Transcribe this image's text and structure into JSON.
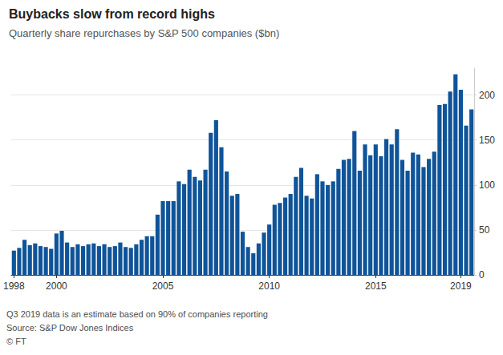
{
  "chart_data": {
    "type": "bar",
    "title": "Buybacks slow from record highs",
    "subtitle": "Quarterly share repurchases by S&P 500 companies ($bn)",
    "notes": [
      "Q3 2019 data is an estimate based on 90% of companies reporting",
      "Source: S&P Dow Jones Indices",
      "© FT"
    ],
    "categories": [
      "1998",
      null,
      null,
      null,
      null,
      null,
      null,
      null,
      "2000",
      null,
      null,
      null,
      null,
      null,
      null,
      null,
      null,
      null,
      null,
      null,
      null,
      null,
      null,
      null,
      null,
      null,
      null,
      null,
      "2005",
      null,
      null,
      null,
      null,
      null,
      null,
      null,
      null,
      null,
      null,
      null,
      null,
      null,
      null,
      null,
      null,
      null,
      null,
      null,
      "2010",
      null,
      null,
      null,
      null,
      null,
      null,
      null,
      null,
      null,
      null,
      null,
      null,
      null,
      null,
      null,
      null,
      null,
      null,
      null,
      "2015",
      null,
      null,
      null,
      null,
      null,
      null,
      null,
      null,
      null,
      null,
      null,
      null,
      null,
      null,
      null,
      "2019",
      null,
      null
    ],
    "values": [
      27,
      30,
      39,
      33,
      35,
      32,
      31,
      29,
      46,
      49,
      36,
      31,
      34,
      32,
      34,
      35,
      32,
      34,
      31,
      32,
      36,
      31,
      30,
      34,
      39,
      43,
      43,
      67,
      82,
      82,
      82,
      104,
      101,
      117,
      109,
      105,
      117,
      158,
      172,
      142,
      115,
      88,
      90,
      48,
      31,
      24,
      35,
      47,
      56,
      78,
      80,
      86,
      90,
      109,
      119,
      88,
      85,
      112,
      104,
      100,
      104,
      118,
      128,
      129,
      160,
      116,
      145,
      133,
      145,
      132,
      151,
      145,
      162,
      128,
      116,
      136,
      134,
      120,
      129,
      137,
      189,
      190,
      204,
      223,
      206,
      166,
      184
    ],
    "color": "#0f5499",
    "ylim": [
      0,
      230
    ],
    "yticks": [
      0,
      50,
      100,
      150,
      200
    ],
    "grid": true
  }
}
